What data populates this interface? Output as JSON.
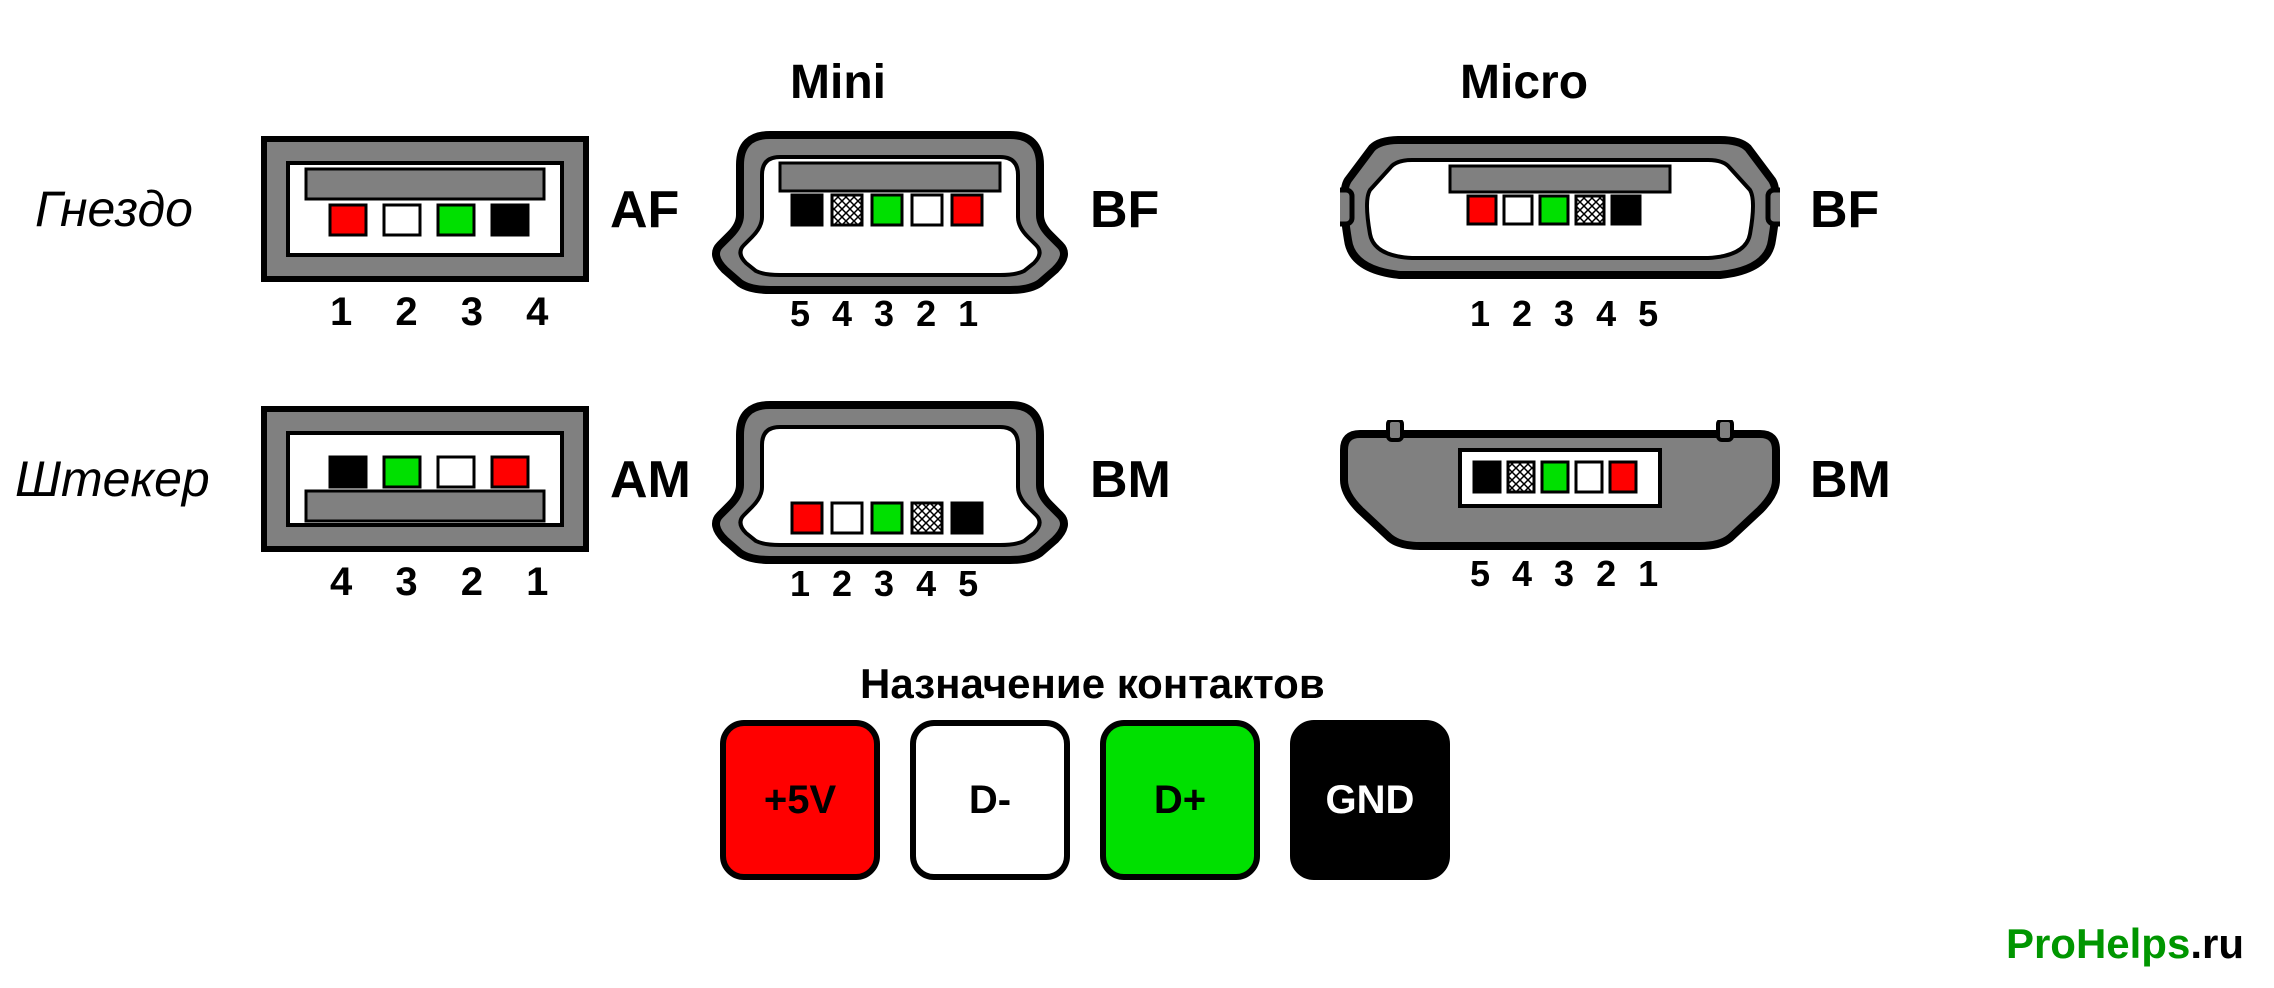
{
  "columnHeaders": {
    "mini": "Mini",
    "micro": "Micro"
  },
  "rowLabels": {
    "socket": "Гнездо",
    "plug": "Штекер"
  },
  "typeLabels": {
    "af": "AF",
    "bf_mini": "BF",
    "bf_micro": "BF",
    "am": "AM",
    "bm_mini": "BM",
    "bm_micro": "BM"
  },
  "pinNumbers": {
    "af": "1 2 3 4",
    "bf_mini": "5 4 3 2 1",
    "bf_micro": "1 2 3 4 5",
    "am": "4 3 2 1",
    "bm_mini": "1 2 3 4 5",
    "bm_micro": "5 4 3 2 1"
  },
  "legend": {
    "title": "Назначение контактов",
    "items": [
      {
        "label": "+5V",
        "bg": "#ff0000",
        "fg": "#000000",
        "border": "#000000"
      },
      {
        "label": "D-",
        "bg": "#ffffff",
        "fg": "#000000",
        "border": "#000000"
      },
      {
        "label": "D+",
        "bg": "#00e000",
        "fg": "#000000",
        "border": "#000000"
      },
      {
        "label": "GND",
        "bg": "#000000",
        "fg": "#ffffff",
        "border": "#000000"
      }
    ]
  },
  "colors": {
    "shell": "#808080",
    "outline": "#000000",
    "white": "#ffffff",
    "red": "#ff0000",
    "green": "#00e000",
    "black": "#000000"
  },
  "connectors": {
    "af": {
      "pins": [
        "red",
        "white",
        "green",
        "black"
      ],
      "count": 4
    },
    "am": {
      "pins": [
        "black",
        "green",
        "white",
        "red"
      ],
      "count": 4
    },
    "bf_mini": {
      "pins": [
        "black",
        "hatch",
        "green",
        "white",
        "red"
      ],
      "count": 5
    },
    "bm_mini": {
      "pins": [
        "red",
        "white",
        "green",
        "hatch",
        "black"
      ],
      "count": 5
    },
    "bf_micro": {
      "pins": [
        "red",
        "white",
        "green",
        "hatch",
        "black"
      ],
      "count": 5
    },
    "bm_micro": {
      "pins": [
        "black",
        "hatch",
        "green",
        "white",
        "red"
      ],
      "count": 5
    }
  },
  "watermark": {
    "brand_green": "ProHelps",
    "brand_black": ".ru"
  }
}
